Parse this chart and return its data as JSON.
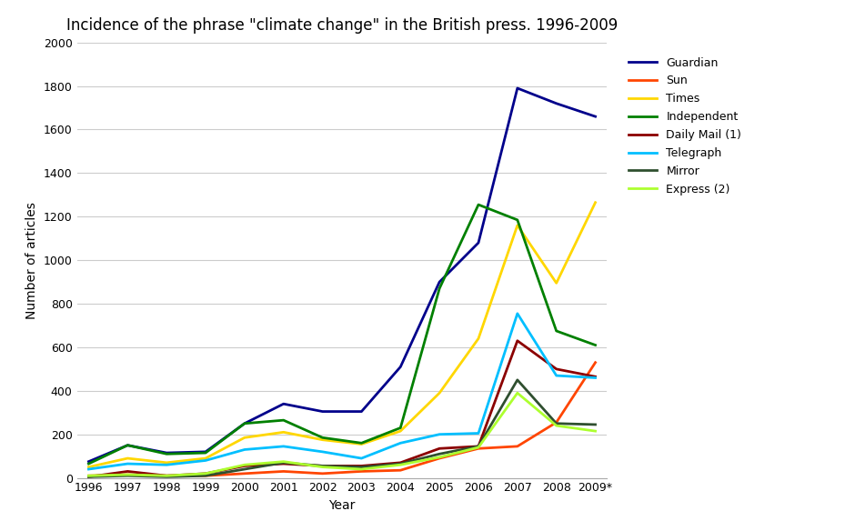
{
  "title": "Incidence of the phrase \"climate change\" in the British press. 1996-2009",
  "xlabel": "Year",
  "ylabel": "Number of articles",
  "years": [
    "1996",
    "1997",
    "1998",
    "1999",
    "2000",
    "2001",
    "2002",
    "2003",
    "2004",
    "2005",
    "2006",
    "2007",
    "2008",
    "2009*"
  ],
  "series": {
    "Guardian": [
      75,
      150,
      115,
      120,
      250,
      340,
      305,
      305,
      510,
      900,
      1080,
      1790,
      1720,
      1660
    ],
    "Sun": [
      10,
      15,
      10,
      10,
      20,
      30,
      20,
      30,
      35,
      90,
      135,
      145,
      255,
      530
    ],
    "Times": [
      50,
      90,
      70,
      90,
      185,
      210,
      175,
      155,
      215,
      390,
      640,
      1160,
      895,
      1265
    ],
    "Independent": [
      65,
      150,
      110,
      115,
      250,
      265,
      185,
      160,
      230,
      870,
      1255,
      1185,
      675,
      610
    ],
    "Daily Mail (1)": [
      5,
      30,
      10,
      20,
      55,
      65,
      55,
      55,
      70,
      135,
      145,
      630,
      500,
      465
    ],
    "Telegraph": [
      40,
      65,
      60,
      80,
      130,
      145,
      120,
      90,
      160,
      200,
      205,
      755,
      470,
      460
    ],
    "Mirror": [
      5,
      10,
      5,
      10,
      40,
      70,
      55,
      50,
      65,
      110,
      145,
      450,
      250,
      245
    ],
    "Express (2)": [
      10,
      15,
      10,
      20,
      60,
      75,
      50,
      40,
      60,
      95,
      140,
      390,
      240,
      215
    ]
  },
  "colors": {
    "Guardian": "#00008B",
    "Sun": "#FF4500",
    "Times": "#FFD700",
    "Independent": "#008000",
    "Daily Mail (1)": "#8B0000",
    "Telegraph": "#00BFFF",
    "Mirror": "#2F4F2F",
    "Express (2)": "#ADFF2F"
  },
  "ylim": [
    0,
    2000
  ],
  "yticks": [
    0,
    200,
    400,
    600,
    800,
    1000,
    1200,
    1400,
    1600,
    1800,
    2000
  ],
  "bg_color": "#ffffff",
  "grid_color": "#cccccc",
  "title_fontsize": 12,
  "axis_label_fontsize": 10,
  "tick_fontsize": 9,
  "legend_fontsize": 9
}
